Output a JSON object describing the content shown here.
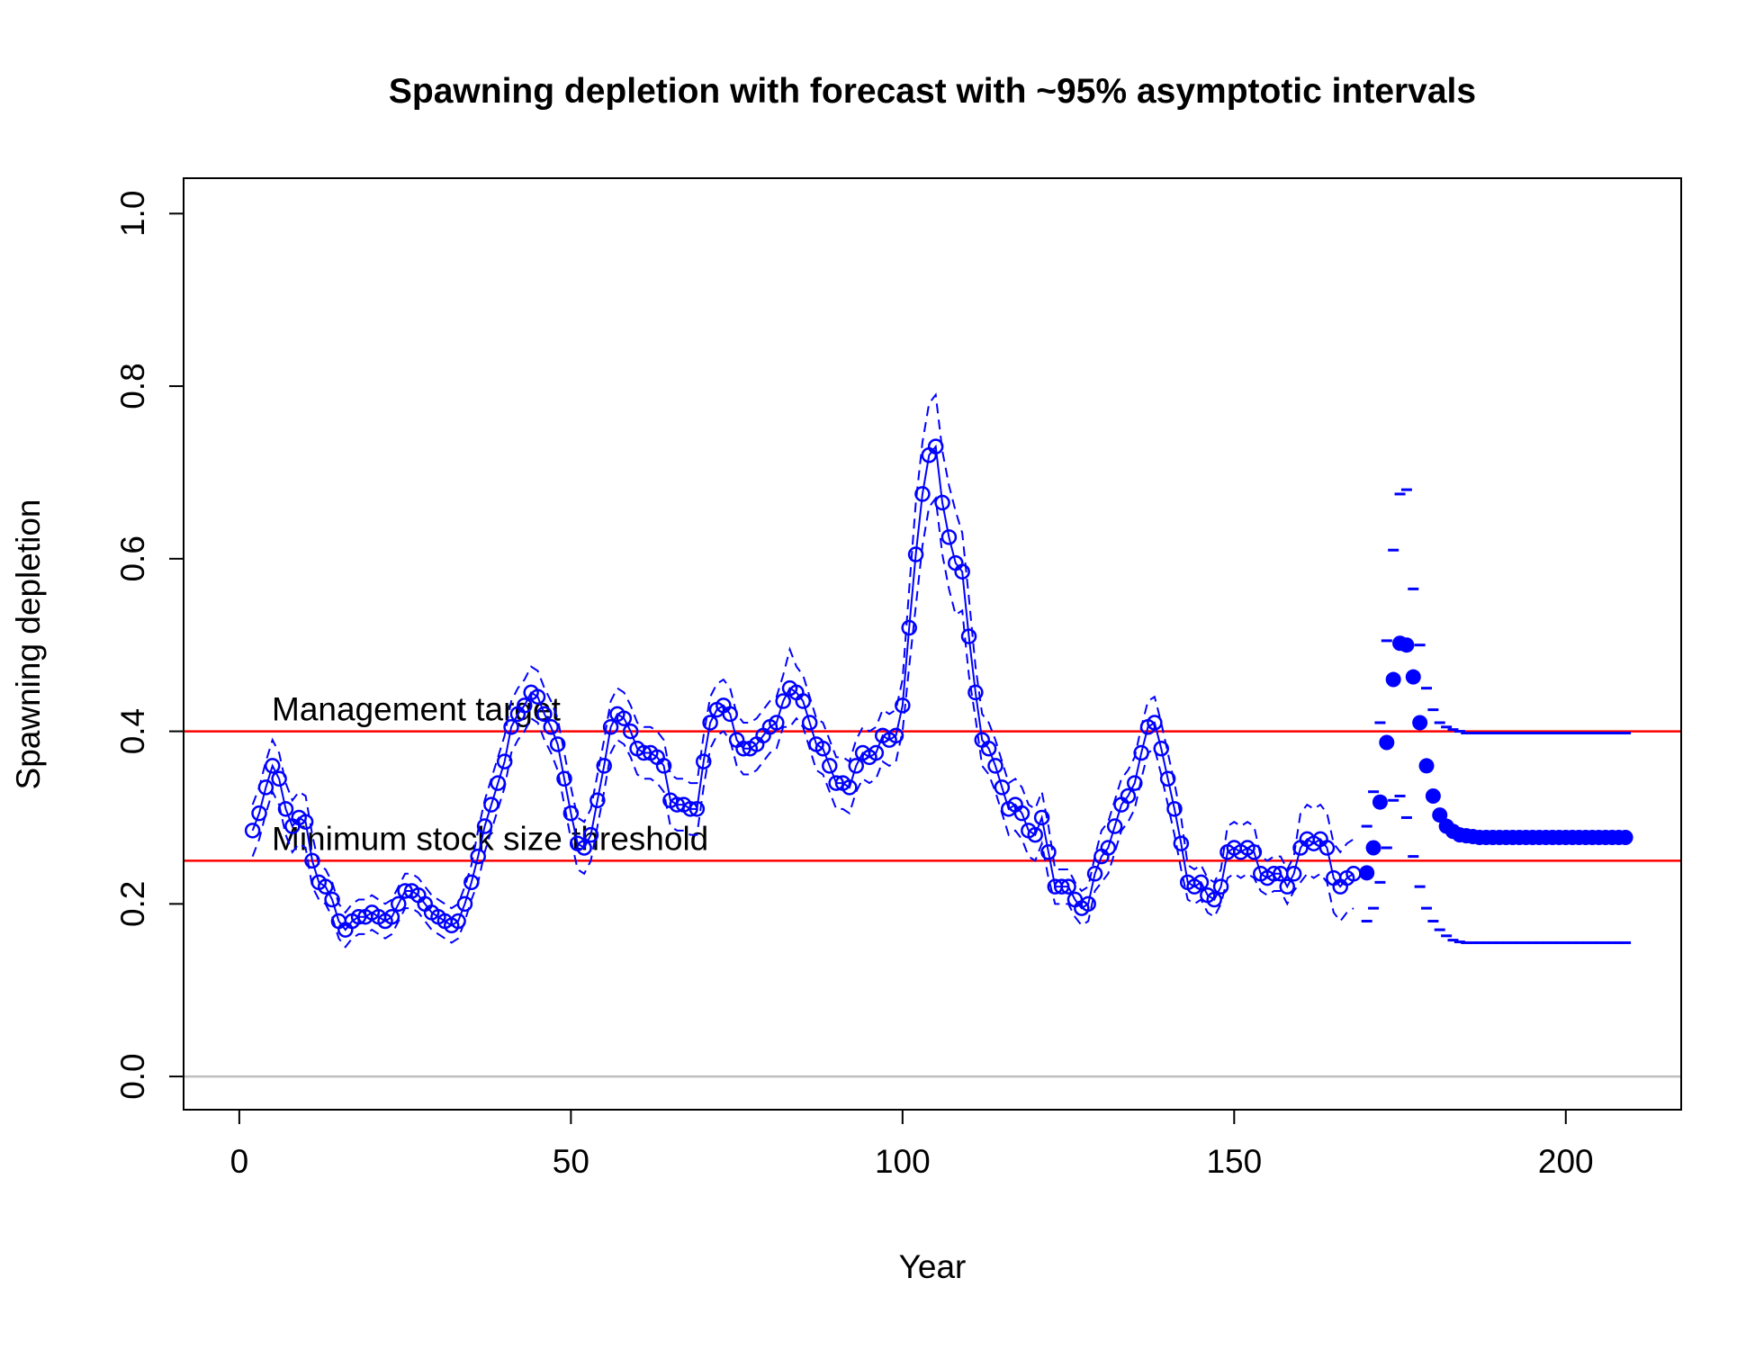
{
  "chart_data": {
    "type": "line",
    "title": "Spawning depletion with forecast with ~95% asymptotic intervals",
    "x_label": "Year",
    "y_label": "Spawning depletion",
    "xlim": [
      -8.4,
      217.4
    ],
    "ylim": [
      -0.0385,
      1.041
    ],
    "xticks": [
      0,
      50,
      100,
      150,
      200
    ],
    "yticks": [
      {
        "value": 0,
        "label": "0.0"
      },
      0.2,
      0.4,
      0.6,
      0.8,
      {
        "value": 1,
        "label": "1.0"
      }
    ],
    "color": "#0000ff",
    "reference_color": "#ff0000",
    "reference_lines": [
      {
        "label": "Management target",
        "value": 0.4
      },
      {
        "label": "Minimum stock size threshold",
        "value": 0.25
      }
    ],
    "historical": {
      "x": [
        2,
        3,
        4,
        5,
        6,
        7,
        8,
        9,
        10,
        11,
        12,
        13,
        14,
        15,
        16,
        17,
        18,
        19,
        20,
        21,
        22,
        23,
        24,
        25,
        26,
        27,
        28,
        29,
        30,
        31,
        32,
        33,
        34,
        35,
        36,
        37,
        38,
        39,
        40,
        41,
        42,
        43,
        44,
        45,
        46,
        47,
        48,
        49,
        50,
        51,
        52,
        53,
        54,
        55,
        56,
        57,
        58,
        59,
        60,
        61,
        62,
        63,
        64,
        65,
        66,
        67,
        68,
        69,
        70,
        71,
        72,
        73,
        74,
        75,
        76,
        77,
        78,
        79,
        80,
        81,
        82,
        83,
        84,
        85,
        86,
        87,
        88,
        89,
        90,
        91,
        92,
        93,
        94,
        95,
        96,
        97,
        98,
        99,
        100,
        101,
        102,
        103,
        104,
        105,
        106,
        107,
        108,
        109,
        110,
        111,
        112,
        113,
        114,
        115,
        116,
        117,
        118,
        119,
        120,
        121,
        122,
        123,
        124,
        125,
        126,
        127,
        128,
        129,
        130,
        131,
        132,
        133,
        134,
        135,
        136,
        137,
        138,
        139,
        140,
        141,
        142,
        143,
        144,
        145,
        146,
        147,
        148,
        149,
        150,
        151,
        152,
        153,
        154,
        155,
        156,
        157,
        158,
        159,
        160,
        161,
        162,
        163,
        164,
        165,
        166,
        167,
        168
      ],
      "values": [
        0.285,
        0.305,
        0.335,
        0.36,
        0.345,
        0.31,
        0.29,
        0.3,
        0.295,
        0.25,
        0.225,
        0.22,
        0.205,
        0.18,
        0.17,
        0.18,
        0.185,
        0.185,
        0.19,
        0.185,
        0.18,
        0.185,
        0.2,
        0.215,
        0.215,
        0.21,
        0.2,
        0.19,
        0.185,
        0.18,
        0.175,
        0.18,
        0.2,
        0.225,
        0.255,
        0.29,
        0.315,
        0.34,
        0.365,
        0.405,
        0.42,
        0.43,
        0.445,
        0.44,
        0.42,
        0.405,
        0.385,
        0.345,
        0.305,
        0.27,
        0.265,
        0.28,
        0.32,
        0.36,
        0.405,
        0.42,
        0.415,
        0.4,
        0.38,
        0.375,
        0.375,
        0.37,
        0.36,
        0.32,
        0.315,
        0.315,
        0.31,
        0.31,
        0.365,
        0.41,
        0.425,
        0.43,
        0.42,
        0.39,
        0.38,
        0.38,
        0.385,
        0.395,
        0.405,
        0.41,
        0.435,
        0.45,
        0.445,
        0.435,
        0.41,
        0.385,
        0.38,
        0.36,
        0.34,
        0.34,
        0.335,
        0.36,
        0.375,
        0.37,
        0.375,
        0.395,
        0.39,
        0.395,
        0.43,
        0.52,
        0.605,
        0.675,
        0.72,
        0.73,
        0.665,
        0.625,
        0.595,
        0.585,
        0.51,
        0.445,
        0.39,
        0.38,
        0.36,
        0.335,
        0.31,
        0.315,
        0.305,
        0.285,
        0.28,
        0.3,
        0.26,
        0.22,
        0.22,
        0.22,
        0.205,
        0.195,
        0.2,
        0.235,
        0.255,
        0.265,
        0.29,
        0.315,
        0.325,
        0.34,
        0.375,
        0.405,
        0.41,
        0.38,
        0.345,
        0.31,
        0.27,
        0.225,
        0.22,
        0.225,
        0.21,
        0.205,
        0.22,
        0.26,
        0.265,
        0.26,
        0.265,
        0.26,
        0.235,
        0.23,
        0.235,
        0.235,
        0.22,
        0.235,
        0.265,
        0.275,
        0.27,
        0.275,
        0.265,
        0.23,
        0.22,
        0.23,
        0.235
      ],
      "lower": [
        0.255,
        0.275,
        0.305,
        0.33,
        0.315,
        0.28,
        0.26,
        0.27,
        0.265,
        0.22,
        0.205,
        0.2,
        0.185,
        0.16,
        0.15,
        0.16,
        0.165,
        0.165,
        0.17,
        0.165,
        0.16,
        0.165,
        0.18,
        0.195,
        0.195,
        0.19,
        0.18,
        0.17,
        0.165,
        0.16,
        0.155,
        0.16,
        0.18,
        0.205,
        0.225,
        0.26,
        0.285,
        0.31,
        0.335,
        0.375,
        0.39,
        0.4,
        0.415,
        0.41,
        0.39,
        0.375,
        0.355,
        0.315,
        0.275,
        0.24,
        0.235,
        0.25,
        0.29,
        0.33,
        0.375,
        0.39,
        0.385,
        0.37,
        0.35,
        0.345,
        0.345,
        0.34,
        0.33,
        0.29,
        0.285,
        0.285,
        0.28,
        0.28,
        0.335,
        0.38,
        0.395,
        0.4,
        0.39,
        0.36,
        0.35,
        0.35,
        0.355,
        0.365,
        0.375,
        0.38,
        0.405,
        0.405,
        0.415,
        0.405,
        0.38,
        0.355,
        0.35,
        0.33,
        0.31,
        0.31,
        0.305,
        0.33,
        0.345,
        0.34,
        0.345,
        0.365,
        0.36,
        0.365,
        0.4,
        0.475,
        0.545,
        0.615,
        0.66,
        0.67,
        0.605,
        0.565,
        0.535,
        0.54,
        0.465,
        0.415,
        0.36,
        0.35,
        0.33,
        0.305,
        0.28,
        0.285,
        0.275,
        0.255,
        0.25,
        0.27,
        0.23,
        0.2,
        0.2,
        0.2,
        0.185,
        0.175,
        0.18,
        0.215,
        0.225,
        0.235,
        0.26,
        0.285,
        0.295,
        0.31,
        0.345,
        0.375,
        0.38,
        0.35,
        0.315,
        0.28,
        0.24,
        0.205,
        0.2,
        0.205,
        0.19,
        0.185,
        0.2,
        0.23,
        0.235,
        0.23,
        0.235,
        0.23,
        0.215,
        0.21,
        0.215,
        0.215,
        0.2,
        0.215,
        0.225,
        0.235,
        0.23,
        0.235,
        0.225,
        0.19,
        0.18,
        0.19,
        0.195
      ],
      "upper": [
        0.315,
        0.335,
        0.365,
        0.39,
        0.375,
        0.34,
        0.32,
        0.33,
        0.325,
        0.28,
        0.245,
        0.24,
        0.225,
        0.2,
        0.19,
        0.2,
        0.205,
        0.205,
        0.21,
        0.205,
        0.2,
        0.205,
        0.22,
        0.235,
        0.235,
        0.23,
        0.22,
        0.21,
        0.205,
        0.2,
        0.195,
        0.2,
        0.22,
        0.245,
        0.285,
        0.32,
        0.345,
        0.37,
        0.395,
        0.435,
        0.45,
        0.46,
        0.475,
        0.47,
        0.45,
        0.435,
        0.415,
        0.375,
        0.335,
        0.3,
        0.295,
        0.31,
        0.35,
        0.39,
        0.435,
        0.45,
        0.445,
        0.43,
        0.41,
        0.405,
        0.405,
        0.4,
        0.39,
        0.35,
        0.345,
        0.345,
        0.34,
        0.34,
        0.395,
        0.44,
        0.455,
        0.46,
        0.45,
        0.42,
        0.41,
        0.41,
        0.415,
        0.425,
        0.435,
        0.44,
        0.465,
        0.495,
        0.475,
        0.465,
        0.44,
        0.415,
        0.41,
        0.39,
        0.37,
        0.37,
        0.365,
        0.39,
        0.405,
        0.4,
        0.405,
        0.425,
        0.42,
        0.425,
        0.46,
        0.565,
        0.665,
        0.735,
        0.78,
        0.79,
        0.725,
        0.685,
        0.655,
        0.63,
        0.555,
        0.475,
        0.42,
        0.41,
        0.39,
        0.365,
        0.34,
        0.345,
        0.335,
        0.315,
        0.31,
        0.33,
        0.29,
        0.24,
        0.24,
        0.24,
        0.225,
        0.215,
        0.22,
        0.255,
        0.285,
        0.295,
        0.32,
        0.345,
        0.355,
        0.37,
        0.405,
        0.435,
        0.44,
        0.41,
        0.375,
        0.34,
        0.3,
        0.245,
        0.24,
        0.245,
        0.23,
        0.225,
        0.24,
        0.29,
        0.295,
        0.29,
        0.295,
        0.29,
        0.255,
        0.25,
        0.255,
        0.255,
        0.24,
        0.255,
        0.305,
        0.315,
        0.31,
        0.315,
        0.305,
        0.27,
        0.26,
        0.27,
        0.275
      ]
    },
    "forecast": {
      "x": [
        170,
        171,
        172,
        173,
        174,
        175,
        176,
        177,
        178,
        179,
        180,
        181,
        182,
        183,
        184,
        185,
        186,
        187,
        188,
        189,
        190,
        191,
        192,
        193,
        194,
        195,
        196,
        197,
        198,
        199,
        200,
        201,
        202,
        203,
        204,
        205,
        206,
        207,
        208,
        209
      ],
      "values": [
        0.236,
        0.265,
        0.318,
        0.387,
        0.46,
        0.502,
        0.5,
        0.463,
        0.41,
        0.36,
        0.325,
        0.303,
        0.29,
        0.284,
        0.28,
        0.279,
        0.278,
        0.277,
        0.277,
        0.277,
        0.277,
        0.277,
        0.277,
        0.277,
        0.277,
        0.277,
        0.277,
        0.277,
        0.277,
        0.277,
        0.277,
        0.277,
        0.277,
        0.277,
        0.277,
        0.277,
        0.277,
        0.277,
        0.277,
        0.277
      ],
      "lower": [
        0.18,
        0.195,
        0.225,
        0.265,
        0.32,
        0.325,
        0.3,
        0.255,
        0.22,
        0.195,
        0.18,
        0.17,
        0.163,
        0.158,
        0.156,
        0.155,
        0.155,
        0.155,
        0.155,
        0.155,
        0.155,
        0.155,
        0.155,
        0.155,
        0.155,
        0.155,
        0.155,
        0.155,
        0.155,
        0.155,
        0.155,
        0.155,
        0.155,
        0.155,
        0.155,
        0.155,
        0.155,
        0.155,
        0.155,
        0.155
      ],
      "upper": [
        0.29,
        0.33,
        0.41,
        0.505,
        0.61,
        0.675,
        0.68,
        0.565,
        0.5,
        0.45,
        0.425,
        0.41,
        0.405,
        0.402,
        0.4,
        0.398,
        0.398,
        0.398,
        0.398,
        0.398,
        0.398,
        0.398,
        0.398,
        0.398,
        0.398,
        0.398,
        0.398,
        0.398,
        0.398,
        0.398,
        0.398,
        0.398,
        0.398,
        0.398,
        0.398,
        0.398,
        0.398,
        0.398,
        0.398,
        0.398
      ]
    }
  }
}
